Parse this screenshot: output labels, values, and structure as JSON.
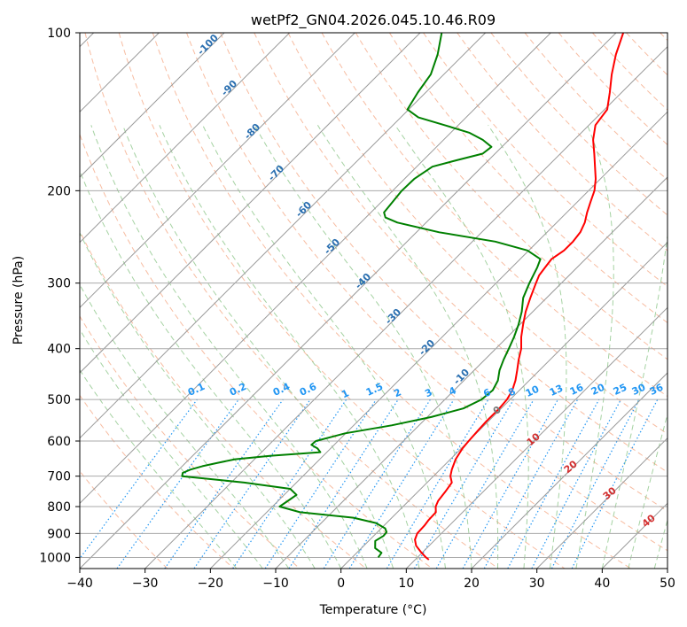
{
  "chart_data": {
    "type": "line",
    "title": "wetPf2_GN04.2026.045.10.46.R09",
    "xlabel": "Temperature (°C)",
    "ylabel": "Pressure (hPa)",
    "xlim": [
      -40,
      50
    ],
    "ylim": [
      1050,
      100
    ],
    "y_scale": "log",
    "x_ticks": [
      -40,
      -30,
      -20,
      -10,
      0,
      10,
      20,
      30,
      40,
      50
    ],
    "y_ticks": [
      1000,
      900,
      800,
      700,
      600,
      500,
      400,
      300,
      200,
      100
    ],
    "grid": true,
    "diagram": "skew-T log-P",
    "series": [
      {
        "color": "#ff0000",
        "pressure": [
          1010,
          1000,
          975,
          950,
          925,
          900,
          870,
          850,
          820,
          800,
          780,
          750,
          720,
          700,
          680,
          650,
          620,
          600,
          570,
          550,
          520,
          500,
          480,
          460,
          440,
          420,
          400,
          380,
          360,
          340,
          320,
          300,
          290,
          280,
          270,
          260,
          250,
          240,
          230,
          220,
          210,
          200,
          190,
          180,
          170,
          160,
          150,
          140,
          130,
          120,
          110,
          100
        ],
        "values": [
          12.1,
          11.3,
          9.6,
          8.0,
          6.9,
          6.3,
          6.2,
          6.0,
          5.9,
          5.0,
          4.5,
          4.2,
          3.8,
          2.6,
          1.8,
          0.8,
          0.2,
          0.0,
          -0.2,
          -0.3,
          -0.3,
          -0.5,
          -1.1,
          -2.1,
          -3.4,
          -4.8,
          -6.1,
          -7.9,
          -9.5,
          -11.1,
          -12.5,
          -13.9,
          -14.6,
          -14.9,
          -15.2,
          -14.6,
          -14.6,
          -14.9,
          -15.7,
          -16.9,
          -18.0,
          -19.1,
          -20.7,
          -22.7,
          -24.8,
          -27.1,
          -29.0,
          -29.6,
          -31.8,
          -34.3,
          -36.7,
          -38.9
        ]
      },
      {
        "color": "#008000",
        "pressure": [
          1000,
          980,
          960,
          930,
          910,
          895,
          880,
          860,
          840,
          820,
          800,
          780,
          760,
          740,
          720,
          700,
          690,
          680,
          670,
          660,
          650,
          640,
          630,
          620,
          610,
          600,
          580,
          560,
          540,
          520,
          500,
          480,
          460,
          440,
          420,
          400,
          380,
          360,
          340,
          320,
          300,
          280,
          270,
          260,
          250,
          240,
          230,
          225,
          220,
          210,
          200,
          190,
          180,
          175,
          170,
          165,
          160,
          155,
          150,
          145,
          140,
          130,
          120,
          110,
          100
        ],
        "values": [
          4.0,
          3.8,
          2.1,
          1.0,
          1.5,
          1.4,
          0.6,
          -1.6,
          -5.9,
          -14.9,
          -18.9,
          -18.5,
          -18.1,
          -20.0,
          -28.0,
          -38.5,
          -38.9,
          -38.2,
          -36.9,
          -35.0,
          -33.0,
          -28.0,
          -21.0,
          -22.0,
          -23.5,
          -23.4,
          -20.1,
          -14.2,
          -9.4,
          -5.8,
          -4.4,
          -4.1,
          -4.8,
          -6.1,
          -7.1,
          -8.0,
          -9.0,
          -10.2,
          -11.7,
          -13.6,
          -14.9,
          -16.1,
          -16.9,
          -20.2,
          -26.5,
          -36.5,
          -44.4,
          -47.0,
          -48.0,
          -48.3,
          -48.6,
          -48.5,
          -47.6,
          -44.9,
          -41.9,
          -41.6,
          -44.0,
          -47.2,
          -52.1,
          -57.3,
          -60.2,
          -61.2,
          -62.0,
          -64.0,
          -66.7
        ]
      }
    ],
    "dry_adiabat_labels": [
      "-100",
      "-90",
      "-80",
      "-70",
      "-60",
      "-50",
      "-40",
      "-30",
      "-20",
      "-10"
    ],
    "mixing_ratio_labels": [
      "0.1",
      "0.2",
      "0.4",
      "0.6",
      "1",
      "1.5",
      "2",
      "3",
      "4",
      "6",
      "8",
      "10",
      "13",
      "16",
      "20",
      "25",
      "30",
      "36"
    ],
    "moist_adiabat_labels": [
      "0",
      "10",
      "20",
      "30",
      "40"
    ],
    "colors": {
      "temperature": "#ff0000",
      "dewpoint": "#008000",
      "isotherm": "#999999",
      "dry_adiabat": "#f4a582",
      "moist_adiabat": "#7fbf7b",
      "mixing_ratio": "#2196f3"
    }
  }
}
